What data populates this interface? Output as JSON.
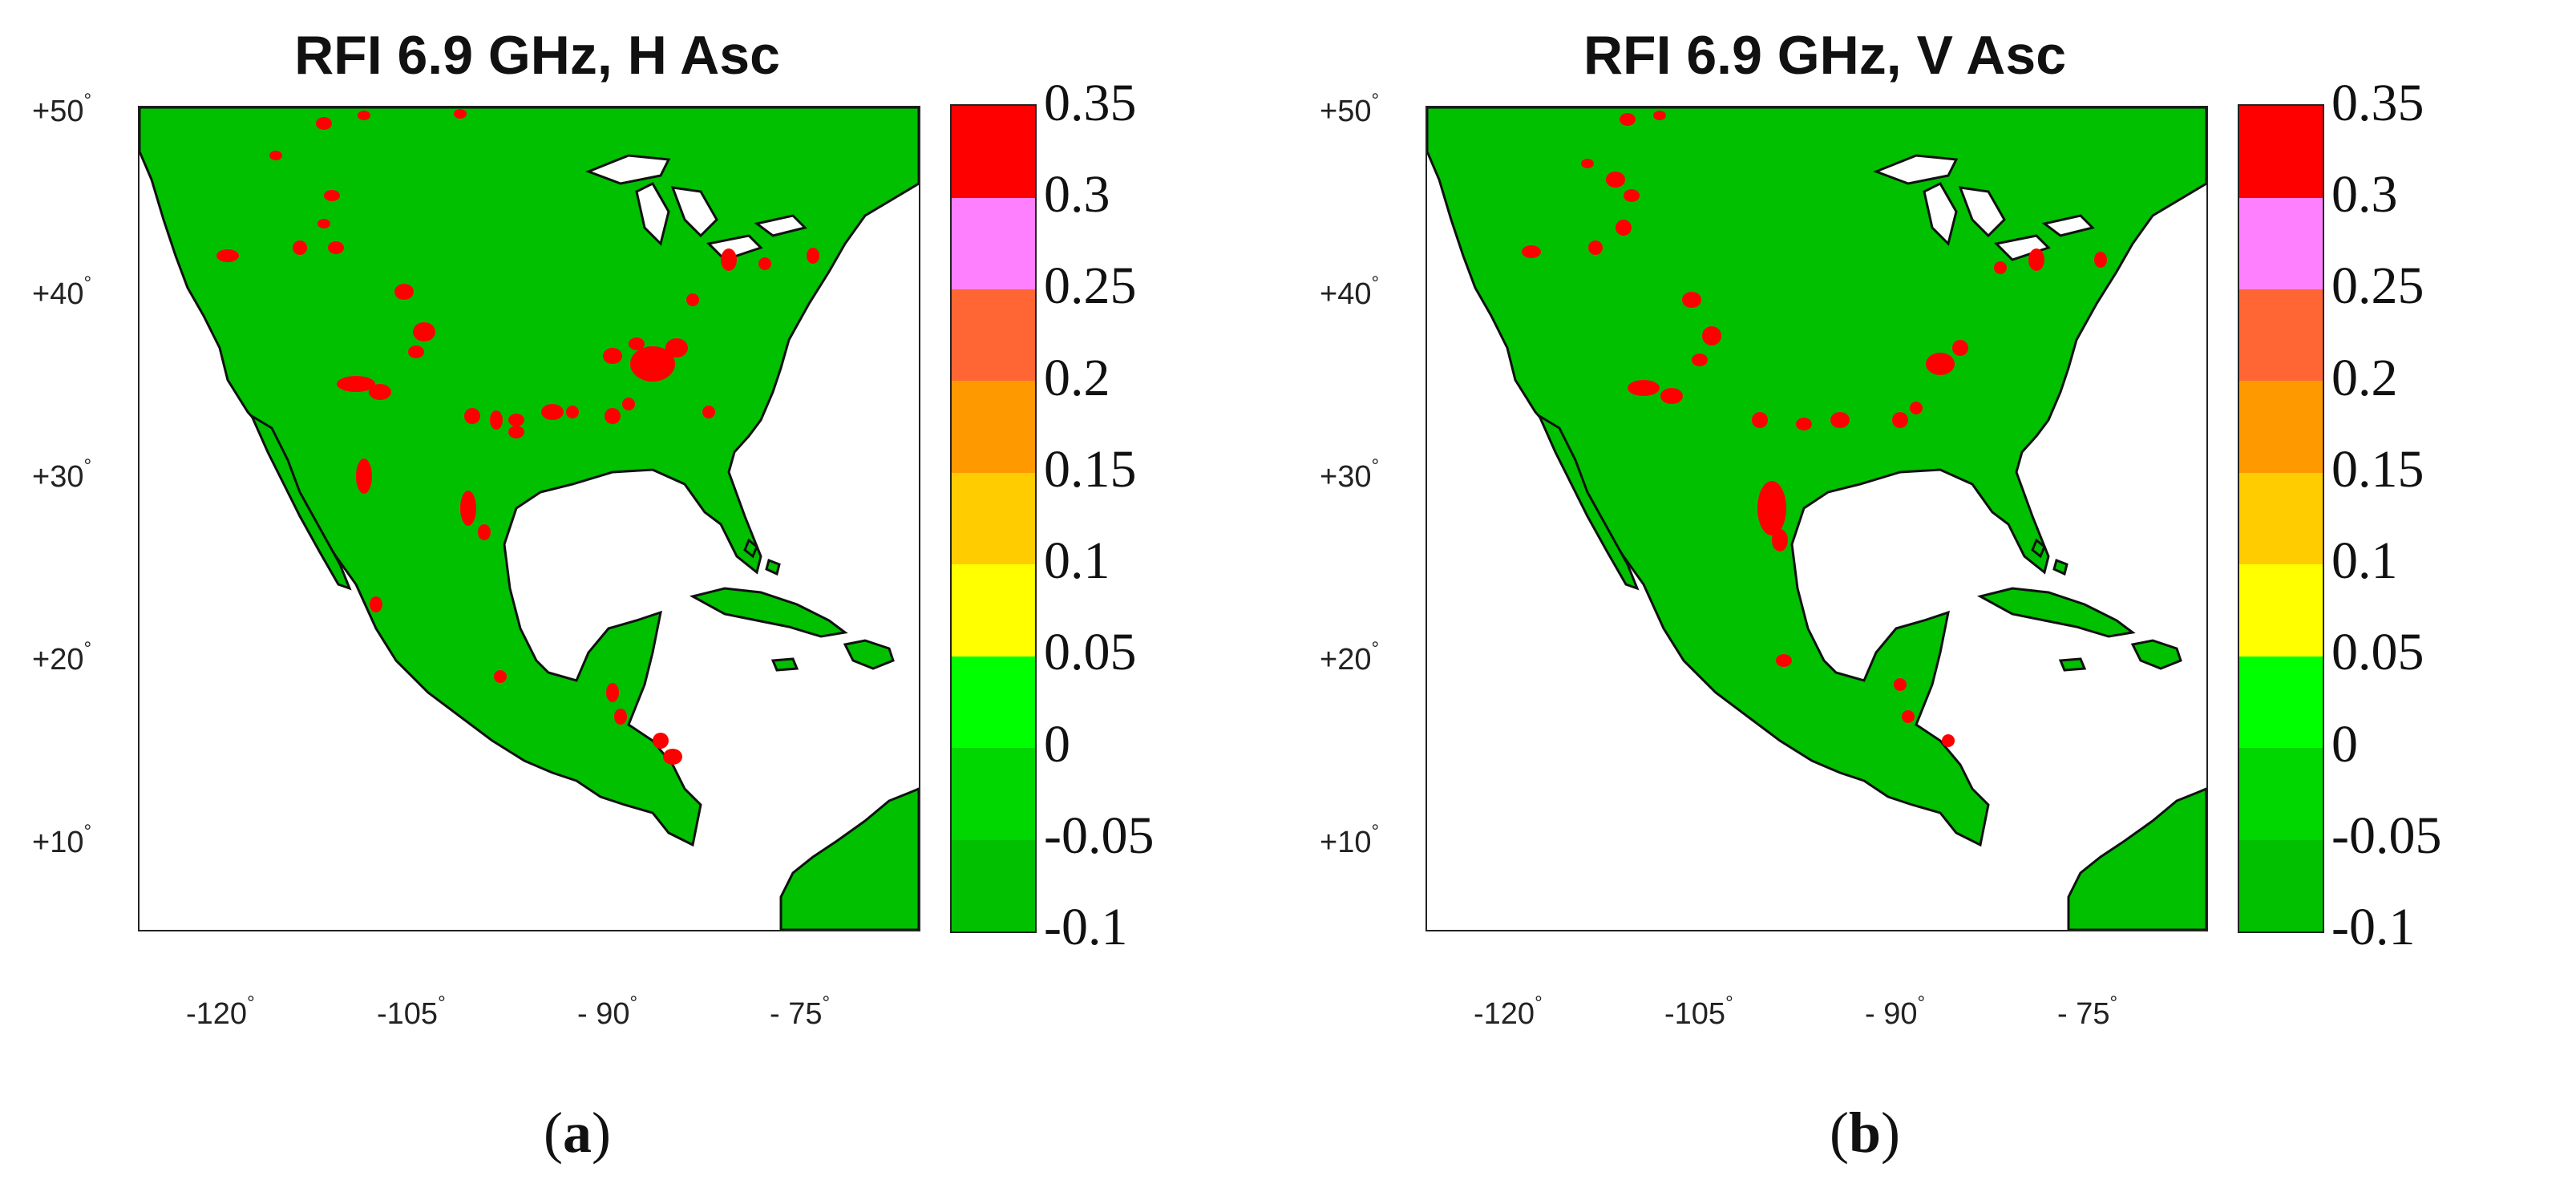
{
  "colors": {
    "land": "#00c000",
    "rfi": "#ff0000",
    "coast": "#111111",
    "water": "#ffffff"
  },
  "colorbar": {
    "ticks": [
      "-0.1",
      "-0.05",
      "0",
      "0.05",
      "0.1",
      "0.15",
      "0.2",
      "0.25",
      "0.3",
      "0.35"
    ],
    "segment_colors": [
      "#00c000",
      "#00d600",
      "#00ff00",
      "#ffff00",
      "#ffcc00",
      "#ff9900",
      "#ff6633",
      "#ff80ff",
      "#ff0000"
    ]
  },
  "axes": {
    "lat_ticks": [
      "+50",
      "+40",
      "+30",
      "+20",
      "+10"
    ],
    "lon_ticks": [
      "-120",
      "-105",
      "- 90",
      "- 75"
    ],
    "degree_symbol": "°"
  },
  "panels": [
    {
      "id": "a",
      "title": "RFI 6.9 GHz, H Asc",
      "sub_open": "(",
      "sub_letter": "a",
      "sub_close": ")"
    },
    {
      "id": "b",
      "title": "RFI 6.9 GHz, V Asc",
      "sub_open": "(",
      "sub_letter": "b",
      "sub_close": ")"
    }
  ]
}
